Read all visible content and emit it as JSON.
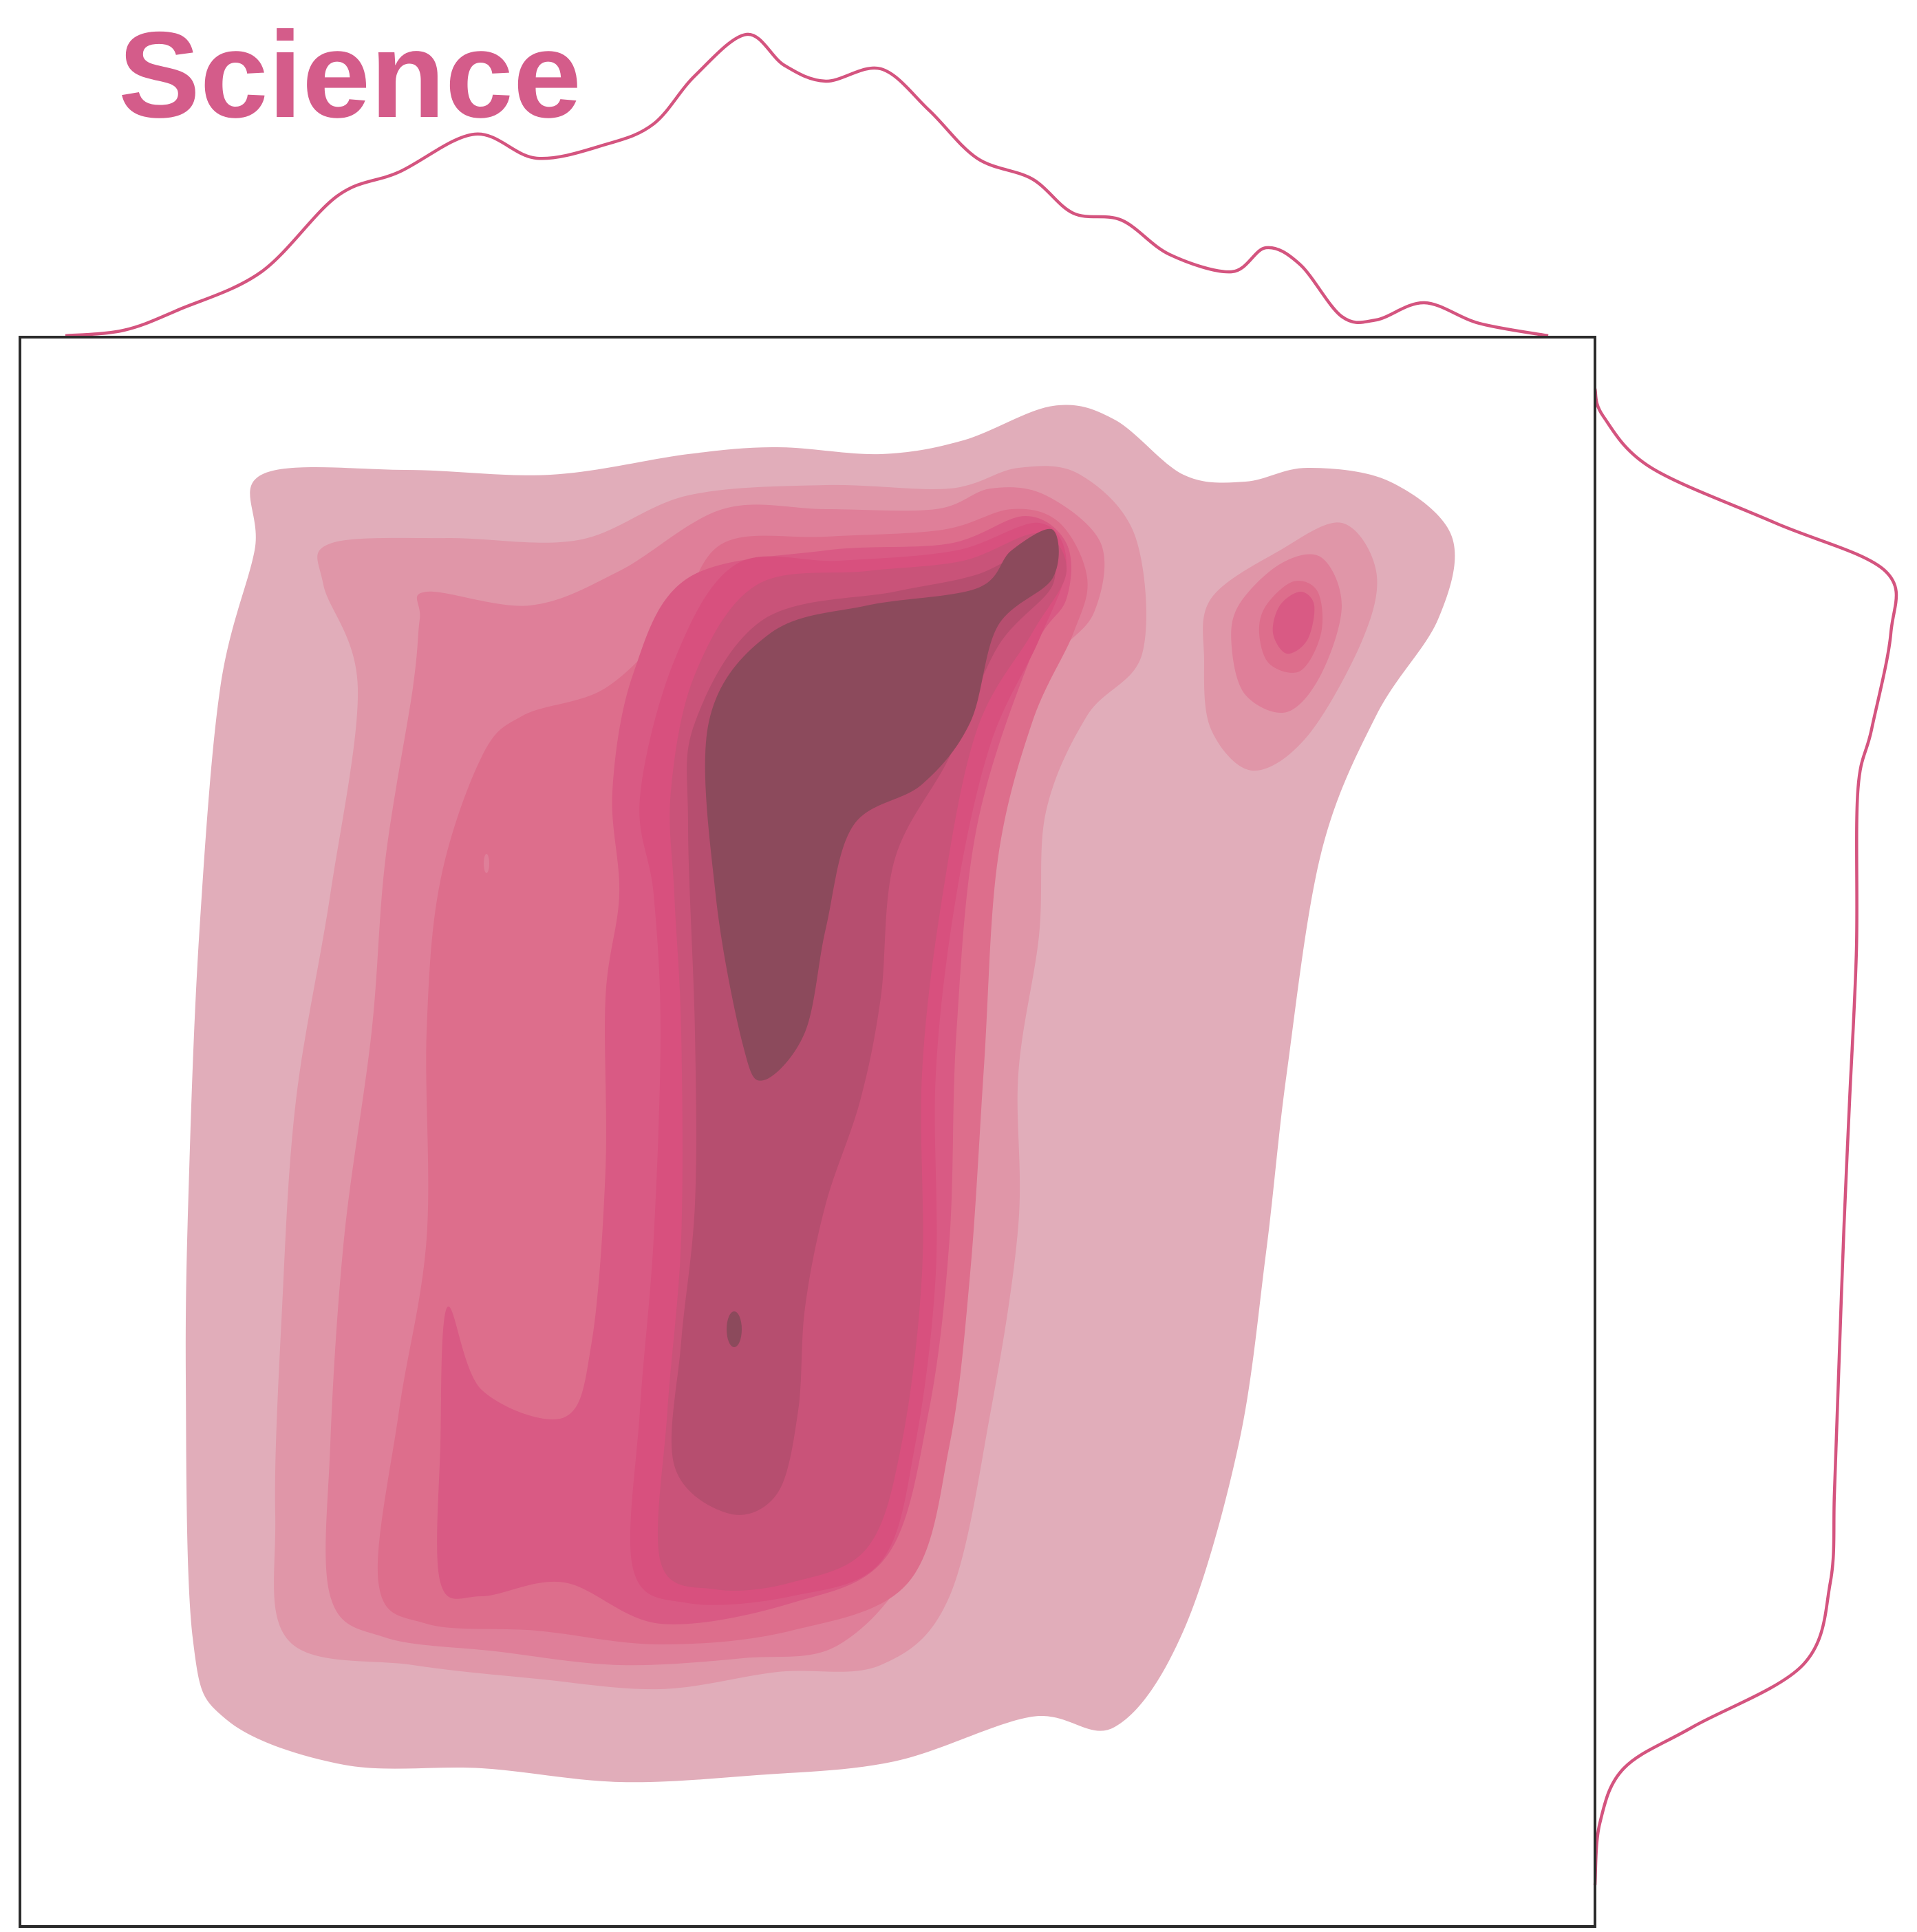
{
  "chart_data": {
    "type": "kde-joint",
    "title": "Science",
    "xlabel": "",
    "ylabel": "",
    "grid": false,
    "legend": "none",
    "contour_levels": 10,
    "colors": {
      "line": "#d4547f",
      "title": "#d45c8a",
      "frame": "#2b2b2b",
      "levels": [
        "#e1adba",
        "#e096a8",
        "#df7f99",
        "#dd6e8c",
        "#d95a84",
        "#d8507e",
        "#c95379",
        "#b64e6f",
        "#8c4a5c"
      ]
    }
  }
}
